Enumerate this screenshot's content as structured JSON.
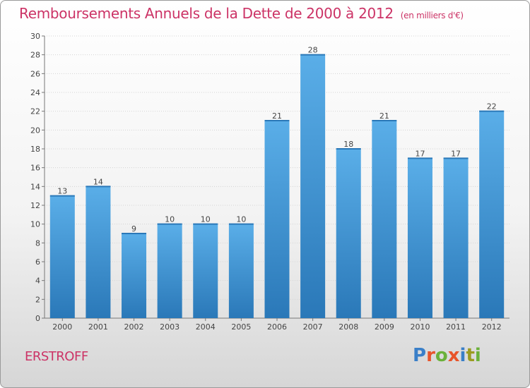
{
  "header": {
    "title": "Remboursements Annuels de la Dette de 2000 à 2012",
    "subtitle": "(en milliers d'€)"
  },
  "footer": {
    "commune": "ERSTROFF",
    "logo_text": "Proxiti"
  },
  "colors": {
    "title": "#cc3366",
    "bar_top": "#5aaee8",
    "bar_bottom": "#2a78b8",
    "logo_letters": [
      "#3a7fc8",
      "#e8542a",
      "#6ab13a",
      "#e8542a",
      "#3a7fc8",
      "#9b9b20",
      "#6ab13a"
    ]
  },
  "chart_data": {
    "type": "bar",
    "categories": [
      "2000",
      "2001",
      "2002",
      "2003",
      "2004",
      "2005",
      "2006",
      "2007",
      "2008",
      "2009",
      "2010",
      "2011",
      "2012"
    ],
    "values": [
      13,
      14,
      9,
      10,
      10,
      10,
      21,
      28,
      18,
      21,
      17,
      17,
      22
    ],
    "title": "Remboursements Annuels de la Dette de 2000 à 2012",
    "subtitle": "(en milliers d'€)",
    "xlabel": "",
    "ylabel": "",
    "ylim": [
      0,
      30
    ],
    "yticks": [
      0,
      2,
      4,
      6,
      8,
      10,
      12,
      14,
      16,
      18,
      20,
      22,
      24,
      26,
      28,
      30
    ],
    "grid": true,
    "data_labels": true
  }
}
